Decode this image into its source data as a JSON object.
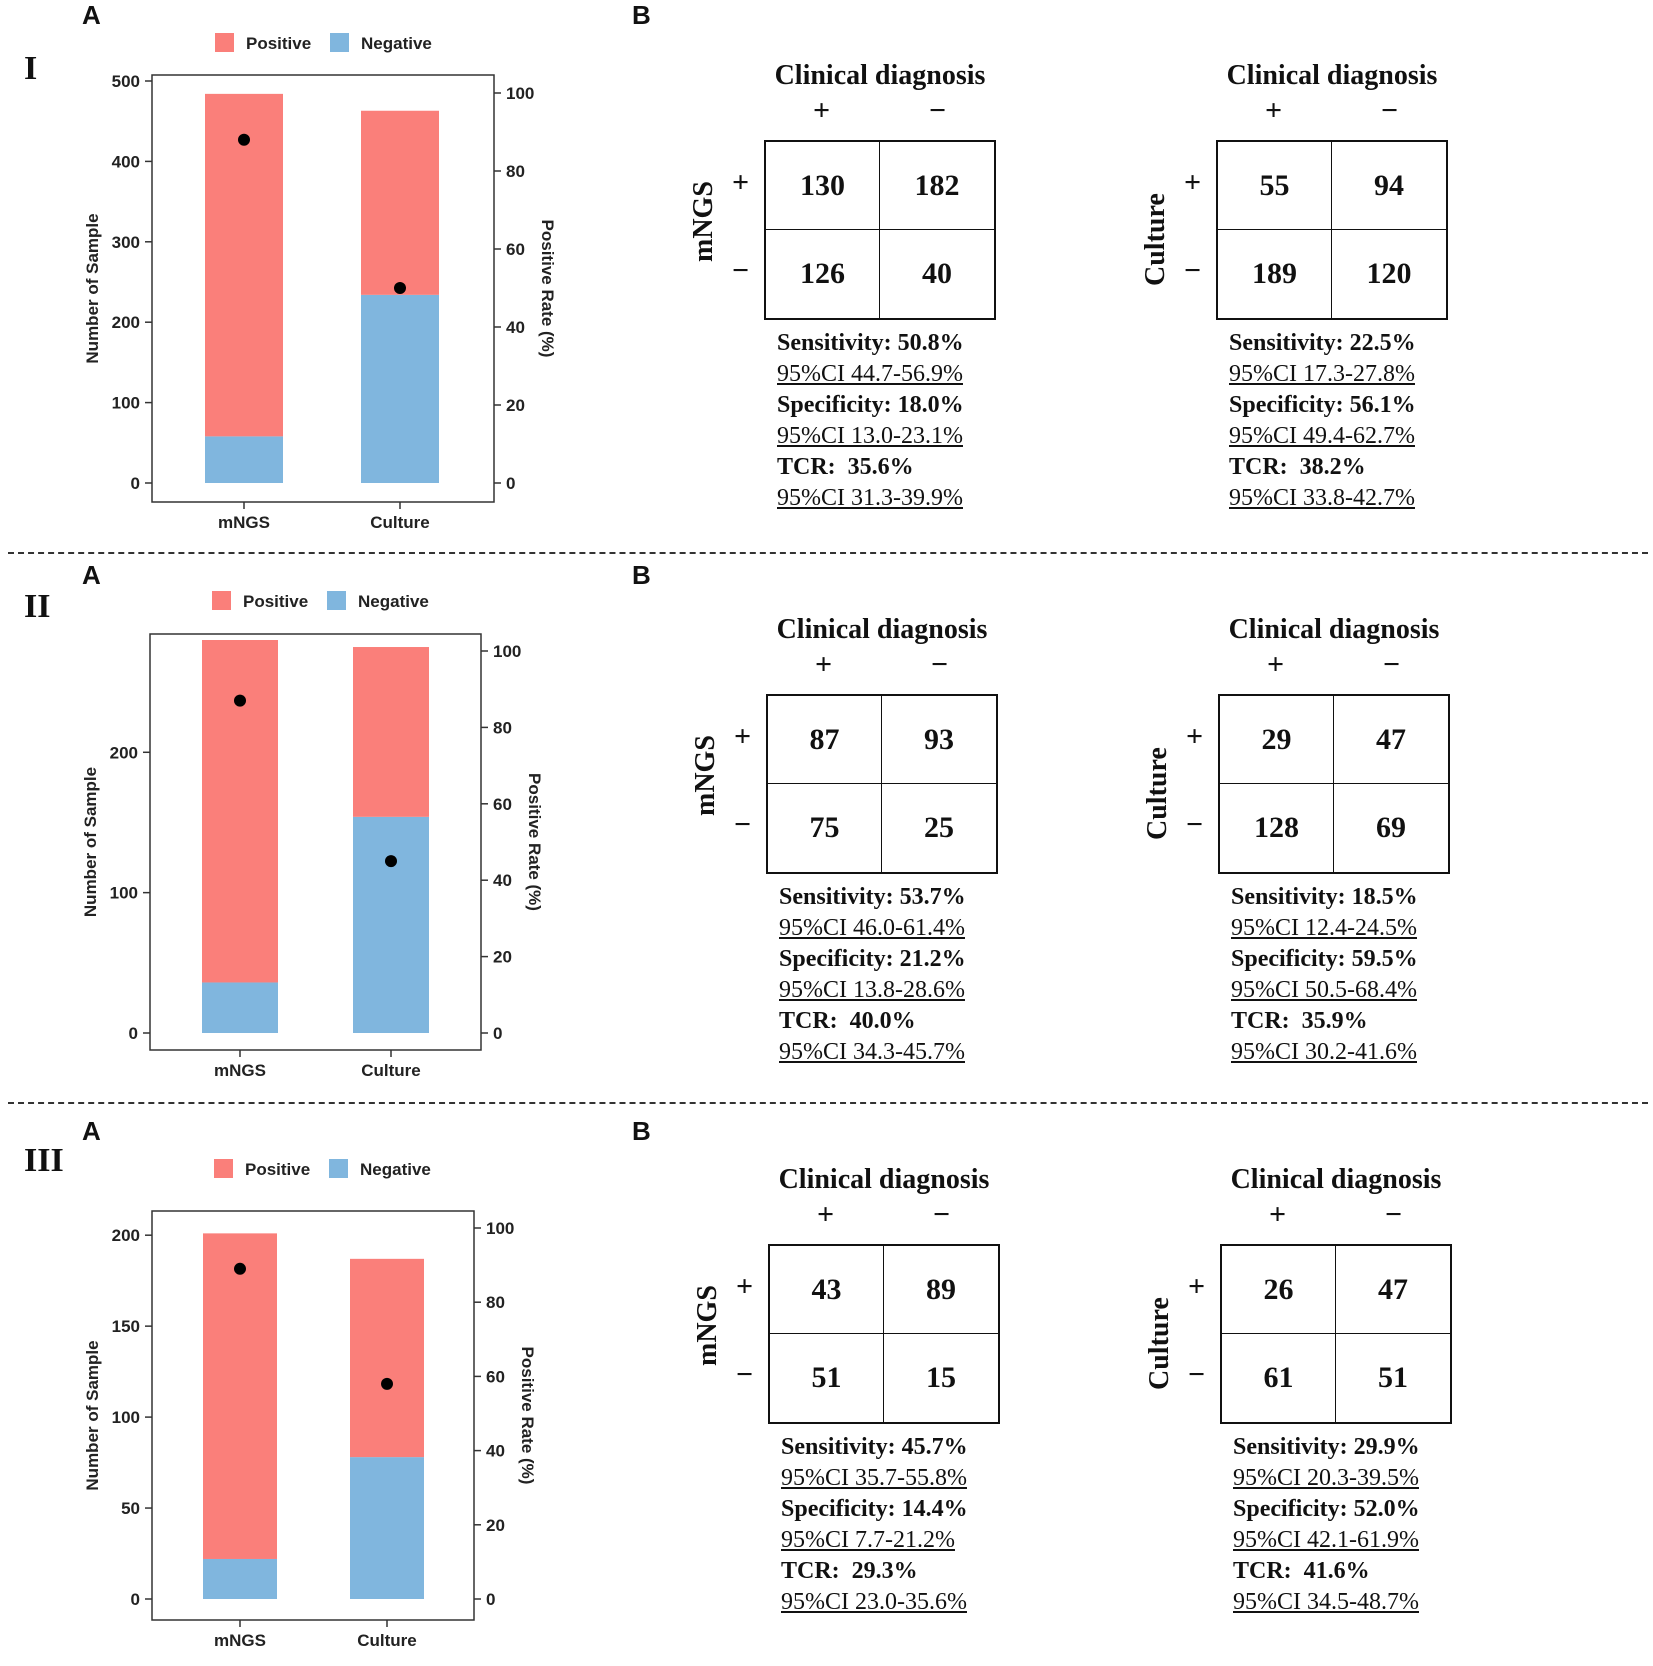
{
  "colors": {
    "positive": "#fa7f7a",
    "negative": "#80b6de",
    "dot": "#000000"
  },
  "sections": [
    {
      "id": "I",
      "label": "I",
      "panel_a": "A",
      "panel_b": "B",
      "legend": {
        "positive": "Positive",
        "negative": "Negative"
      },
      "ylabel_left": "Number of Sample",
      "ylabel_right": "Positive Rate (%)",
      "left_ticks": [
        "0",
        "100",
        "200",
        "300",
        "400",
        "500"
      ],
      "right_ticks": [
        "0",
        "20",
        "40",
        "60",
        "80",
        "100"
      ],
      "categories": [
        "mNGS",
        "Culture"
      ],
      "tables": [
        {
          "title": "Clinical diagnosis",
          "row_label": "mNGS",
          "plus": "+",
          "minus": "−",
          "cells": [
            "130",
            "182",
            "126",
            "40"
          ],
          "sens": "Sensitivity: 50.8%",
          "sens_ci": "95%CI 44.7-56.9%",
          "spec": "Specificity: 18.0%",
          "spec_ci": "95%CI 13.0-23.1%",
          "tcr": "TCR:  35.6%",
          "tcr_ci": "95%CI 31.3-39.9%"
        },
        {
          "title": "Clinical diagnosis",
          "row_label": "Culture",
          "plus": "+",
          "minus": "−",
          "cells": [
            "55",
            "94",
            "189",
            "120"
          ],
          "sens": "Sensitivity: 22.5%",
          "sens_ci": "95%CI 17.3-27.8%",
          "spec": "Specificity: 56.1%",
          "spec_ci": "95%CI 49.4-62.7%",
          "tcr": "TCR:  38.2%",
          "tcr_ci": "95%CI 33.8-42.7%"
        }
      ]
    },
    {
      "id": "II",
      "label": "II",
      "panel_a": "A",
      "panel_b": "B",
      "legend": {
        "positive": "Positive",
        "negative": "Negative"
      },
      "ylabel_left": "Number of Sample",
      "ylabel_right": "Positive Rate (%)",
      "left_ticks": [
        "0",
        "100",
        "200"
      ],
      "right_ticks": [
        "0",
        "20",
        "40",
        "60",
        "80",
        "100"
      ],
      "categories": [
        "mNGS",
        "Culture"
      ],
      "tables": [
        {
          "title": "Clinical diagnosis",
          "row_label": "mNGS",
          "plus": "+",
          "minus": "−",
          "cells": [
            "87",
            "93",
            "75",
            "25"
          ],
          "sens": "Sensitivity: 53.7%",
          "sens_ci": "95%CI 46.0-61.4%",
          "spec": "Specificity: 21.2%",
          "spec_ci": "95%CI 13.8-28.6%",
          "tcr": "TCR:  40.0%",
          "tcr_ci": "95%CI 34.3-45.7%"
        },
        {
          "title": "Clinical diagnosis",
          "row_label": "Culture",
          "plus": "+",
          "minus": "−",
          "cells": [
            "29",
            "47",
            "128",
            "69"
          ],
          "sens": "Sensitivity: 18.5%",
          "sens_ci": "95%CI 12.4-24.5%",
          "spec": "Specificity: 59.5%",
          "spec_ci": "95%CI 50.5-68.4%",
          "tcr": "TCR:  35.9%",
          "tcr_ci": "95%CI 30.2-41.6%"
        }
      ]
    },
    {
      "id": "III",
      "label": "III",
      "panel_a": "A",
      "panel_b": "B",
      "legend": {
        "positive": "Positive",
        "negative": "Negative"
      },
      "ylabel_left": "Number of Sample",
      "ylabel_right": "Positive Rate (%)",
      "left_ticks": [
        "0",
        "50",
        "100",
        "150",
        "200"
      ],
      "right_ticks": [
        "0",
        "20",
        "40",
        "60",
        "80",
        "100"
      ],
      "categories": [
        "mNGS",
        "Culture"
      ],
      "tables": [
        {
          "title": "Clinical diagnosis",
          "row_label": "mNGS",
          "plus": "+",
          "minus": "−",
          "cells": [
            "43",
            "89",
            "51",
            "15"
          ],
          "sens": "Sensitivity: 45.7%",
          "sens_ci": "95%CI 35.7-55.8%",
          "spec": "Specificity: 14.4%",
          "spec_ci": "95%CI 7.7-21.2%",
          "tcr": "TCR:  29.3%",
          "tcr_ci": "95%CI 23.0-35.6%"
        },
        {
          "title": "Clinical diagnosis",
          "row_label": "Culture",
          "plus": "+",
          "minus": "−",
          "cells": [
            "26",
            "47",
            "61",
            "51"
          ],
          "sens": "Sensitivity: 29.9%",
          "sens_ci": "95%CI 20.3-39.5%",
          "spec": "Specificity: 52.0%",
          "spec_ci": "95%CI 42.1-61.9%",
          "tcr": "TCR:  41.6%",
          "tcr_ci": "95%CI 34.5-48.7%"
        }
      ]
    }
  ],
  "chart_data": [
    {
      "type": "bar",
      "stacked": true,
      "title": "I",
      "categories": [
        "mNGS",
        "Culture"
      ],
      "series": [
        {
          "name": "Negative",
          "values": [
            58,
            234
          ]
        },
        {
          "name": "Positive",
          "values": [
            426,
            229
          ]
        },
        {
          "name": "Positive Rate (%)",
          "axis": "right",
          "kind": "point",
          "values": [
            88,
            50
          ]
        }
      ],
      "ylabel": "Number of Sample",
      "y2label": "Positive Rate (%)",
      "ylim": [
        0,
        500
      ],
      "y2lim": [
        0,
        100
      ]
    },
    {
      "type": "bar",
      "stacked": true,
      "title": "II",
      "categories": [
        "mNGS",
        "Culture"
      ],
      "series": [
        {
          "name": "Negative",
          "values": [
            36,
            154
          ]
        },
        {
          "name": "Positive",
          "values": [
            244,
            121
          ]
        },
        {
          "name": "Positive Rate (%)",
          "axis": "right",
          "kind": "point",
          "values": [
            87,
            45
          ]
        }
      ],
      "ylabel": "Number of Sample",
      "y2label": "Positive Rate (%)",
      "ylim": [
        0,
        280
      ],
      "y2lim": [
        0,
        100
      ]
    },
    {
      "type": "bar",
      "stacked": true,
      "title": "III",
      "categories": [
        "mNGS",
        "Culture"
      ],
      "series": [
        {
          "name": "Negative",
          "values": [
            22,
            78
          ]
        },
        {
          "name": "Positive",
          "values": [
            179,
            109
          ]
        },
        {
          "name": "Positive Rate (%)",
          "axis": "right",
          "kind": "point",
          "values": [
            89,
            58
          ]
        }
      ],
      "ylabel": "Number of Sample",
      "y2label": "Positive Rate (%)",
      "ylim": [
        0,
        210
      ],
      "y2lim": [
        0,
        100
      ]
    }
  ]
}
